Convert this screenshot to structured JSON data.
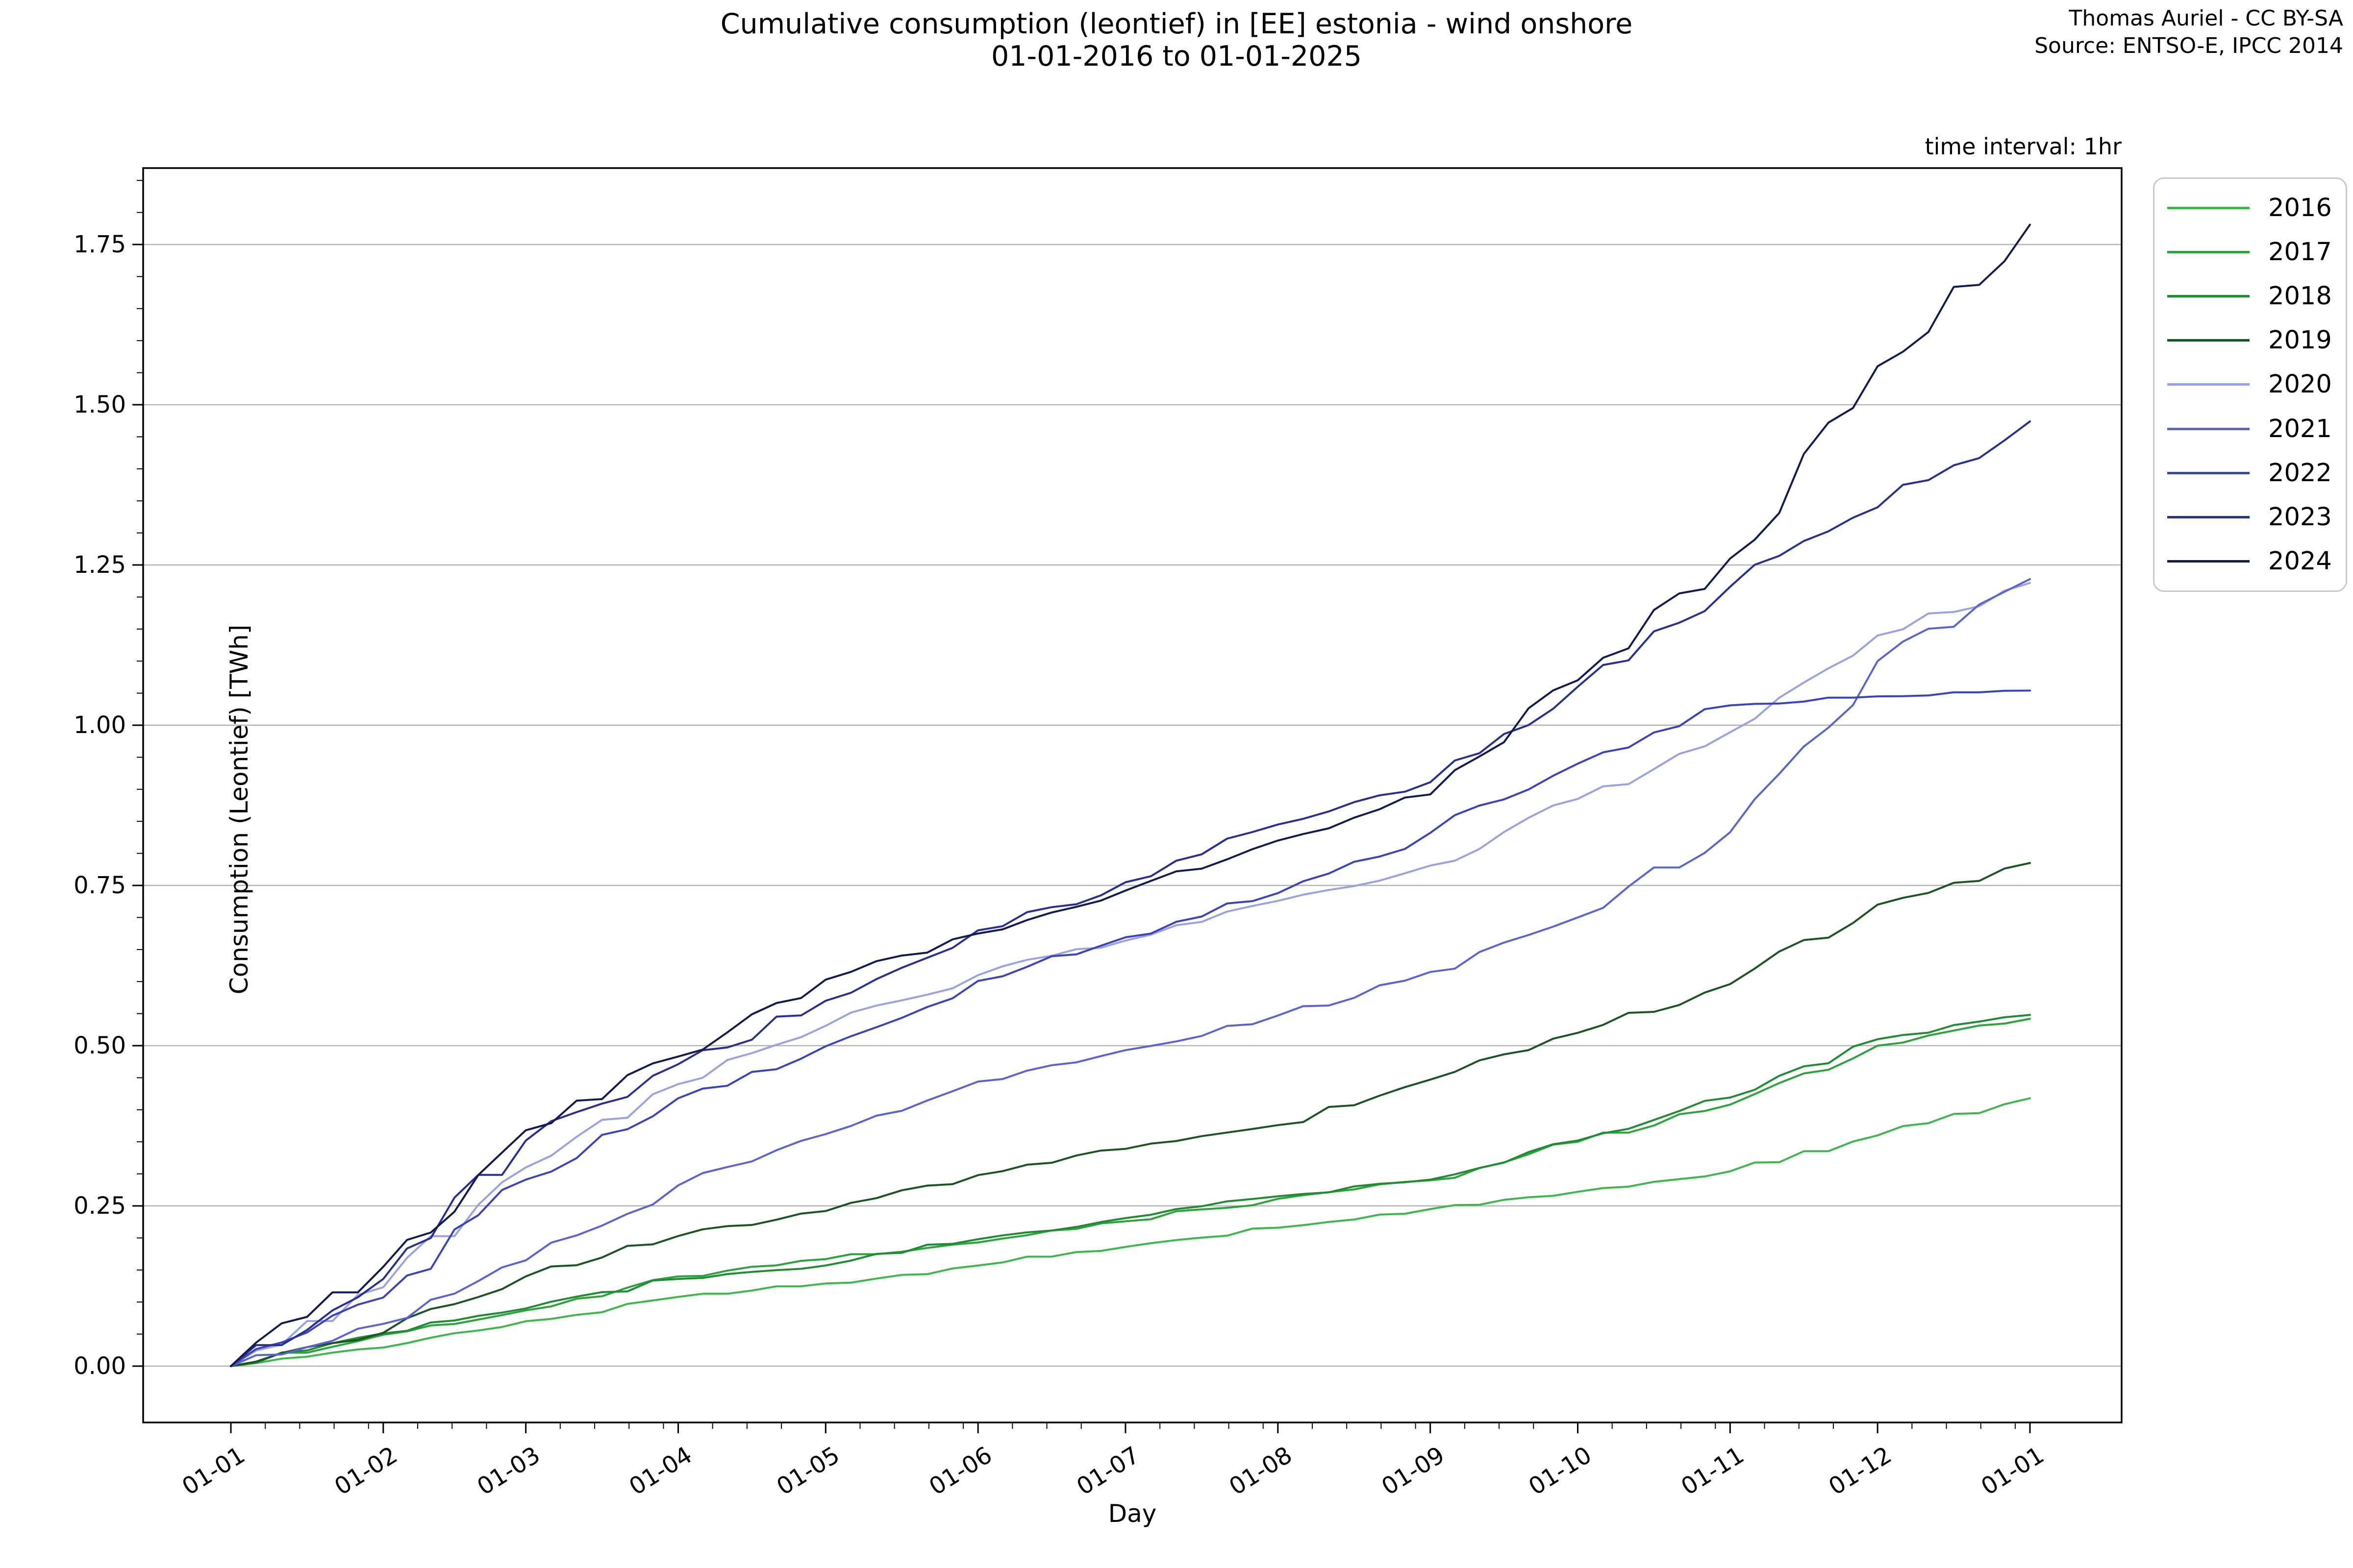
{
  "header": {
    "title_line1": "Cumulative consumption (leontief) in [EE] estonia - wind onshore",
    "title_line2": "01-01-2016 to 01-01-2025",
    "attribution_line1": "Thomas Auriel - CC BY-SA",
    "attribution_line2": "Source: ENTSO-E, IPCC 2014",
    "time_interval_note": "time interval: 1hr"
  },
  "chart_data": {
    "type": "line",
    "title": "Cumulative consumption (leontief) in [EE] estonia - wind onshore 01-01-2016 to 01-01-2025",
    "xlabel": "Day",
    "ylabel": "Consumption (Leontief) [TWh]",
    "grid": "horizontal-only",
    "grid_color": "#b3b3b3",
    "legend_position": "outside-right",
    "ylim": [
      -0.09,
      1.87
    ],
    "y_ticks": [
      {
        "label": "0.00",
        "value": 0.0
      },
      {
        "label": "0.25",
        "value": 0.25
      },
      {
        "label": "0.50",
        "value": 0.5
      },
      {
        "label": "0.75",
        "value": 0.75
      },
      {
        "label": "1.00",
        "value": 1.0
      },
      {
        "label": "1.25",
        "value": 1.25
      },
      {
        "label": "1.50",
        "value": 1.5
      },
      {
        "label": "1.75",
        "value": 1.75
      }
    ],
    "y_minor_tick_step": 0.05,
    "x_ticks": [
      {
        "label": "01-01",
        "day_of_year": 0
      },
      {
        "label": "01-02",
        "day_of_year": 31
      },
      {
        "label": "01-03",
        "day_of_year": 60
      },
      {
        "label": "01-04",
        "day_of_year": 91
      },
      {
        "label": "01-05",
        "day_of_year": 121
      },
      {
        "label": "01-06",
        "day_of_year": 152
      },
      {
        "label": "01-07",
        "day_of_year": 182
      },
      {
        "label": "01-08",
        "day_of_year": 213
      },
      {
        "label": "01-09",
        "day_of_year": 244
      },
      {
        "label": "01-10",
        "day_of_year": 274
      },
      {
        "label": "01-11",
        "day_of_year": 305
      },
      {
        "label": "01-12",
        "day_of_year": 335
      },
      {
        "label": "01-01",
        "day_of_year": 366
      }
    ],
    "sample_dates": [
      "01-01",
      "01-02",
      "01-03",
      "01-04",
      "01-05",
      "01-06",
      "01-07",
      "01-08",
      "01-09",
      "01-10",
      "01-11",
      "01-12",
      "01-01"
    ],
    "unit": "TWh",
    "series": [
      {
        "name": "2016",
        "color": "#3fb64d",
        "values": [
          0,
          0.029,
          0.07,
          0.108,
          0.129,
          0.157,
          0.186,
          0.216,
          0.245,
          0.272,
          0.304,
          0.36,
          0.418
        ]
      },
      {
        "name": "2017",
        "color": "#2da23c",
        "values": [
          0,
          0.049,
          0.087,
          0.14,
          0.167,
          0.193,
          0.226,
          0.261,
          0.29,
          0.35,
          0.408,
          0.5,
          0.542
        ]
      },
      {
        "name": "2018",
        "color": "#1f8c31",
        "values": [
          0,
          0.051,
          0.09,
          0.136,
          0.157,
          0.198,
          0.231,
          0.265,
          0.291,
          0.352,
          0.419,
          0.51,
          0.548
        ]
      },
      {
        "name": "2019",
        "color": "#1a5424",
        "values": [
          0,
          0.052,
          0.14,
          0.203,
          0.242,
          0.298,
          0.339,
          0.376,
          0.447,
          0.52,
          0.596,
          0.72,
          0.785
        ]
      },
      {
        "name": "2020",
        "color": "#9aa2e2",
        "values": [
          0,
          0.123,
          0.31,
          0.44,
          0.531,
          0.61,
          0.664,
          0.726,
          0.781,
          0.885,
          0.989,
          1.14,
          1.222
        ]
      },
      {
        "name": "2021",
        "color": "#5b63d3",
        "values": [
          0,
          0.066,
          0.165,
          0.282,
          0.362,
          0.444,
          0.493,
          0.547,
          0.615,
          0.7,
          0.833,
          1.1,
          1.228
        ]
      },
      {
        "name": "2022",
        "color": "#3a42bd",
        "values": [
          0,
          0.107,
          0.291,
          0.418,
          0.499,
          0.601,
          0.669,
          0.738,
          0.832,
          0.94,
          1.031,
          1.045,
          1.054
        ]
      },
      {
        "name": "2023",
        "color": "#272f93",
        "values": [
          0,
          0.136,
          0.352,
          0.471,
          0.57,
          0.68,
          0.755,
          0.845,
          0.911,
          1.06,
          1.216,
          1.34,
          1.474
        ]
      },
      {
        "name": "2024",
        "color": "#121a52",
        "values": [
          0,
          0.155,
          0.368,
          0.483,
          0.603,
          0.675,
          0.742,
          0.82,
          0.892,
          1.07,
          1.26,
          1.56,
          1.781
        ]
      }
    ]
  }
}
